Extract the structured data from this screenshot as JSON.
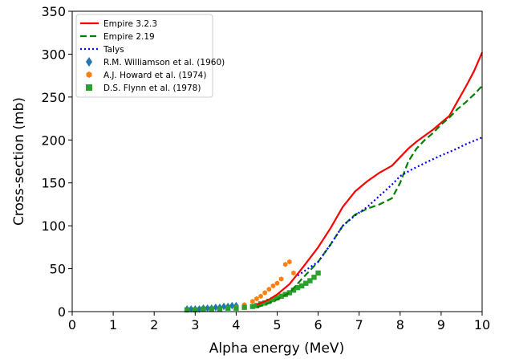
{
  "chart_data": {
    "type": "line",
    "xlabel": "Alpha energy (MeV)",
    "ylabel": "Cross-section (mb)",
    "xlim": [
      0,
      10
    ],
    "ylim": [
      0,
      350
    ],
    "xticks": [
      0,
      1,
      2,
      3,
      4,
      5,
      6,
      7,
      8,
      9,
      10
    ],
    "yticks": [
      0,
      50,
      100,
      150,
      200,
      250,
      300,
      350
    ],
    "grid": false,
    "legend_position": "top-left",
    "series": [
      {
        "name": "Empire 3.2.3",
        "kind": "line",
        "style": "solid",
        "color": "#ff0000",
        "x": [
          4.5,
          4.8,
          5.0,
          5.3,
          5.6,
          6.0,
          6.3,
          6.6,
          6.9,
          7.2,
          7.5,
          7.8,
          8.0,
          8.2,
          8.4,
          8.6,
          8.8,
          9.0,
          9.2,
          9.4,
          9.6,
          9.8,
          10.0
        ],
        "y": [
          8,
          14,
          20,
          32,
          50,
          75,
          97,
          122,
          140,
          152,
          162,
          170,
          180,
          190,
          198,
          205,
          212,
          220,
          228,
          245,
          262,
          280,
          302
        ]
      },
      {
        "name": "Empire 2.19",
        "kind": "line",
        "style": "dashed",
        "color": "#008000",
        "x": [
          4.5,
          4.8,
          5.0,
          5.3,
          5.6,
          6.0,
          6.3,
          6.6,
          6.9,
          7.2,
          7.5,
          7.8,
          8.0,
          8.2,
          8.4,
          8.6,
          8.8,
          9.0,
          9.2,
          9.4,
          9.6,
          9.8,
          10.0
        ],
        "y": [
          5,
          10,
          14,
          22,
          38,
          58,
          78,
          100,
          113,
          120,
          125,
          132,
          150,
          175,
          190,
          200,
          208,
          218,
          226,
          236,
          244,
          253,
          263
        ]
      },
      {
        "name": "Talys",
        "kind": "line",
        "style": "dotted",
        "color": "#0000ff",
        "x": [
          5.5,
          6.0,
          6.3,
          6.6,
          6.9,
          7.2,
          7.5,
          7.8,
          8.0,
          8.3,
          8.6,
          9.0,
          9.3,
          9.6,
          10.0
        ],
        "y": [
          42,
          58,
          78,
          100,
          112,
          122,
          135,
          148,
          158,
          166,
          173,
          182,
          188,
          195,
          203
        ]
      },
      {
        "name": "R.M. Williamson et al. (1960)",
        "kind": "scatter",
        "marker": "diamond",
        "color": "#1f77b4",
        "x": [
          2.8,
          2.9,
          3.0,
          3.1,
          3.2,
          3.3,
          3.4,
          3.5,
          3.6,
          3.7,
          3.8,
          3.9,
          4.0
        ],
        "y": [
          3,
          3,
          3,
          3,
          4,
          4,
          4,
          5,
          5,
          6,
          6,
          7,
          7
        ]
      },
      {
        "name": "A.J. Howard et al. (1974)",
        "kind": "scatter",
        "marker": "hexagon",
        "color": "#ff7f0e",
        "x": [
          4.0,
          4.2,
          4.4,
          4.5,
          4.6,
          4.7,
          4.8,
          4.9,
          5.0,
          5.1,
          5.2,
          5.3,
          5.4
        ],
        "y": [
          5,
          8,
          12,
          15,
          18,
          22,
          26,
          30,
          33,
          38,
          55,
          58,
          45
        ]
      },
      {
        "name": "D.S. Flynn et al. (1978)",
        "kind": "scatter",
        "marker": "square",
        "color": "#2ca02c",
        "x": [
          2.8,
          3.0,
          3.2,
          3.4,
          3.6,
          3.8,
          4.0,
          4.2,
          4.4,
          4.5,
          4.6,
          4.7,
          4.8,
          4.9,
          5.0,
          5.1,
          5.2,
          5.3,
          5.4,
          5.5,
          5.6,
          5.7,
          5.8,
          5.9,
          6.0
        ],
        "y": [
          2,
          2,
          3,
          3,
          3,
          4,
          4,
          5,
          6,
          7,
          9,
          10,
          12,
          14,
          16,
          18,
          20,
          22,
          25,
          28,
          30,
          33,
          36,
          40,
          45
        ]
      }
    ]
  }
}
